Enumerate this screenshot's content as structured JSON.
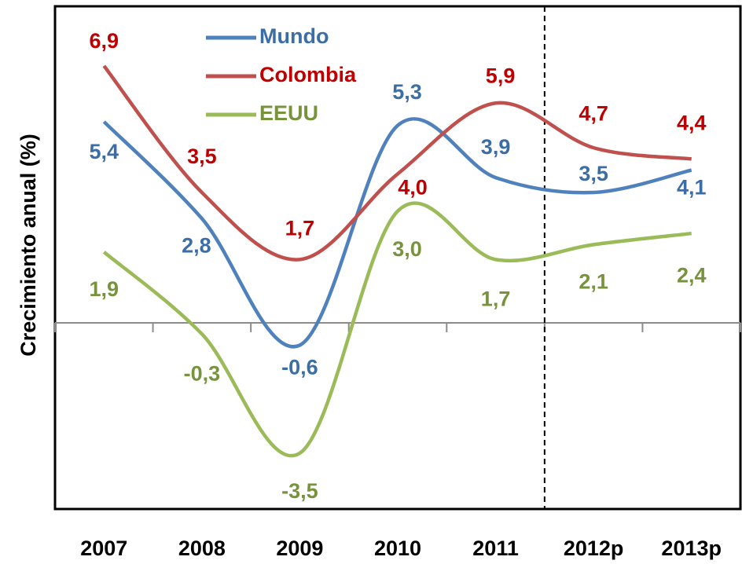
{
  "chart_data": {
    "type": "line",
    "y_label": "Crecimiento anual (%)",
    "categories": [
      "2007",
      "2008",
      "2009",
      "2010",
      "2011",
      "2012p",
      "2013p"
    ],
    "ylim": [
      -5,
      8.5
    ],
    "series": [
      {
        "name": "Mundo",
        "color": "#4f81bd",
        "label_color": "#3b6ea6",
        "values": [
          5.4,
          2.8,
          -0.6,
          5.3,
          3.9,
          3.5,
          4.1
        ],
        "value_labels": [
          "5,4",
          "2,8",
          "-0,6",
          "5,3",
          "3,9",
          "3,5",
          "4,1"
        ]
      },
      {
        "name": "Colombia",
        "color": "#c0504d",
        "label_color": "#c00000",
        "values": [
          6.9,
          3.5,
          1.7,
          4.0,
          5.9,
          4.7,
          4.4
        ],
        "value_labels": [
          "6,9",
          "3,5",
          "1,7",
          "4,0",
          "5,9",
          "4,7",
          "4,4"
        ]
      },
      {
        "name": "EEUU",
        "color": "#9bbb59",
        "label_color": "#77933c",
        "values": [
          1.9,
          -0.3,
          -3.5,
          3.0,
          1.7,
          2.1,
          2.4
        ],
        "value_labels": [
          "1,9",
          "-0,3",
          "-3,5",
          "3,0",
          "1,7",
          "2,1",
          "2,4"
        ]
      }
    ]
  }
}
